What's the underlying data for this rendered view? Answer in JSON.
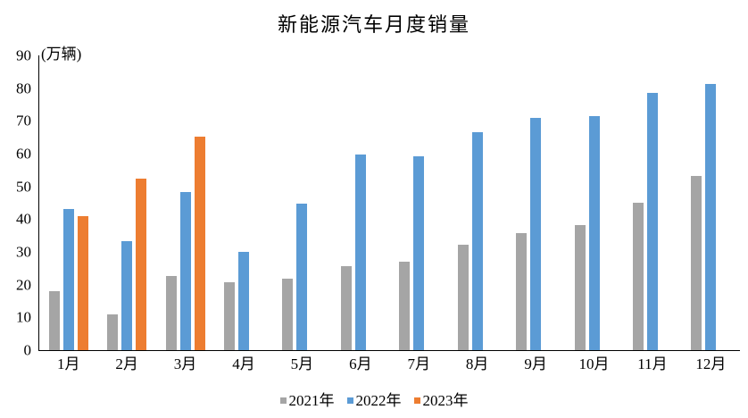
{
  "chart_data": {
    "type": "bar",
    "title": "新能源汽车月度销量",
    "ylabel": "(万辆)",
    "xlabel": "",
    "categories": [
      "1月",
      "2月",
      "3月",
      "4月",
      "5月",
      "6月",
      "7月",
      "8月",
      "9月",
      "10月",
      "11月",
      "12月"
    ],
    "series": [
      {
        "name": "2021年",
        "color": "#A5A5A5",
        "values": [
          17.9,
          11.0,
          22.6,
          20.6,
          21.7,
          25.6,
          27.1,
          32.1,
          35.7,
          38.3,
          45.0,
          53.1
        ]
      },
      {
        "name": "2022年",
        "color": "#5B9BD5",
        "values": [
          43.1,
          33.4,
          48.4,
          29.9,
          44.7,
          59.6,
          59.3,
          66.6,
          70.8,
          71.4,
          78.6,
          81.4
        ]
      },
      {
        "name": "2023年",
        "color": "#ED7D31",
        "values": [
          40.8,
          52.5,
          65.3,
          null,
          null,
          null,
          null,
          null,
          null,
          null,
          null,
          null
        ]
      }
    ],
    "ylim": [
      0,
      90
    ],
    "yticks": [
      0,
      10,
      20,
      30,
      40,
      50,
      60,
      70,
      80,
      90
    ],
    "grid": false,
    "legend_position": "bottom",
    "axis_color": "#000000",
    "background_color": "#FFFFFF"
  }
}
